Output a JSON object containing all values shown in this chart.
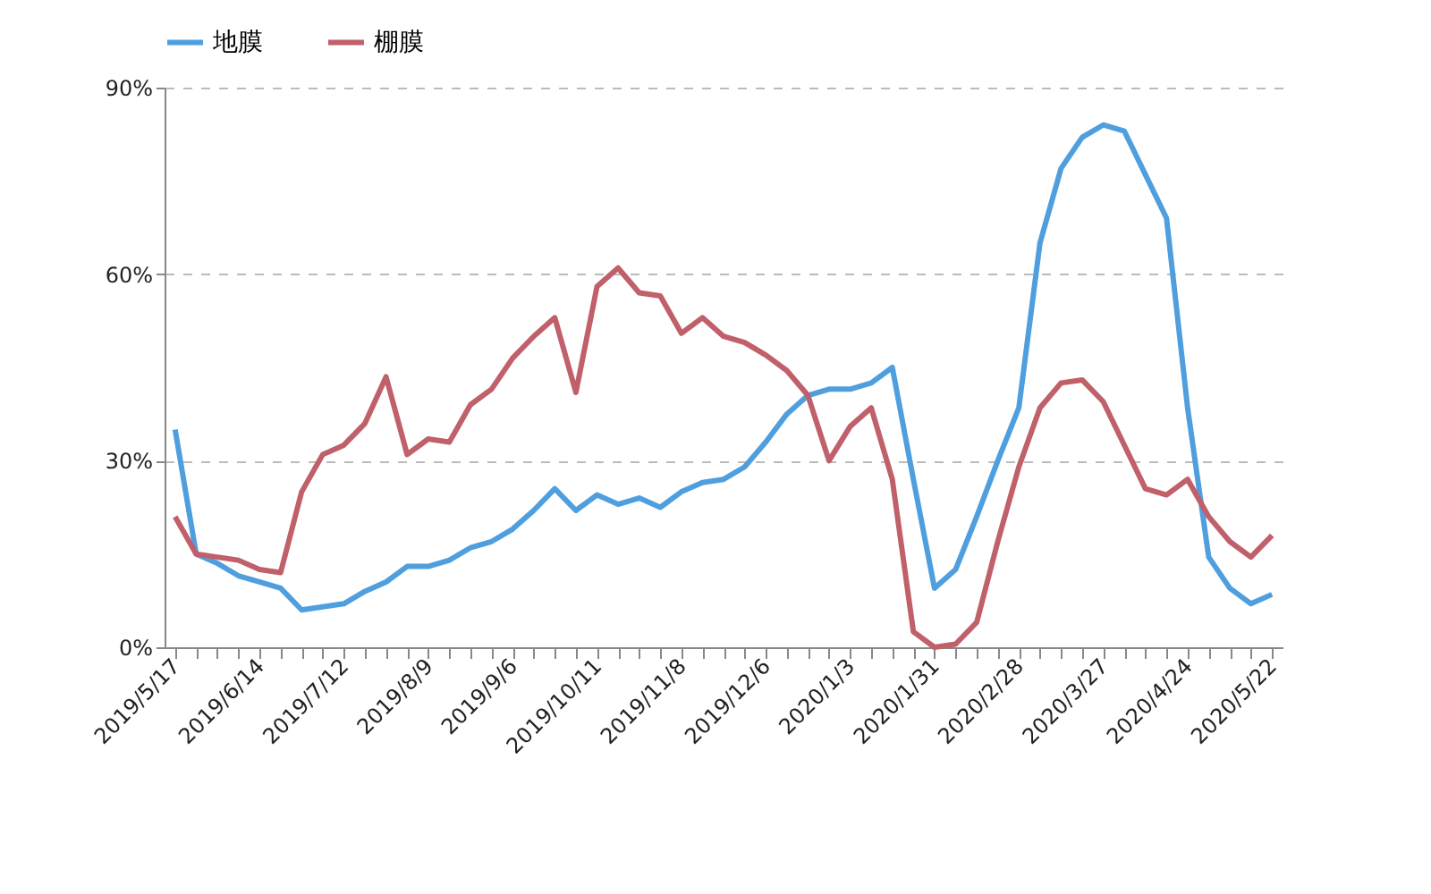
{
  "chart_data": {
    "type": "line",
    "categories": [
      "2019/5/17",
      null,
      null,
      null,
      "2019/6/14",
      null,
      null,
      null,
      "2019/7/12",
      null,
      null,
      null,
      "2019/8/9",
      null,
      null,
      null,
      "2019/9/6",
      null,
      null,
      null,
      "2019/10/11",
      null,
      null,
      null,
      "2019/11/8",
      null,
      null,
      null,
      "2019/12/6",
      null,
      null,
      null,
      "2020/1/3",
      null,
      null,
      null,
      "2020/1/31",
      null,
      null,
      null,
      "2020/2/28",
      null,
      null,
      null,
      "2020/3/27",
      null,
      null,
      null,
      "2020/4/24",
      null,
      null,
      null,
      "2020/5/22"
    ],
    "series": [
      {
        "name": "地膜",
        "color": "#4f9fdf",
        "values": [
          35,
          15,
          13.5,
          11.5,
          10.5,
          9.5,
          6,
          6.5,
          7,
          9,
          10.5,
          13,
          13,
          14,
          16,
          17,
          19,
          22,
          25.5,
          22,
          24.5,
          23,
          24,
          22.5,
          25,
          26.5,
          27,
          29,
          33,
          37.5,
          40.5,
          41.5,
          41.5,
          42.5,
          45,
          27,
          9.5,
          12.5,
          21,
          30,
          38.5,
          65,
          77,
          82,
          84,
          83,
          76,
          69,
          38.5,
          14.5,
          9.5,
          7,
          8.5
        ]
      },
      {
        "name": "棚膜",
        "color": "#c0606a",
        "values": [
          21,
          15,
          14.5,
          14,
          12.5,
          12,
          25,
          31,
          32.5,
          36,
          43.5,
          31,
          33.5,
          33,
          39,
          41.5,
          46.5,
          50,
          53,
          41,
          58,
          61,
          57,
          56.5,
          50.5,
          53,
          50,
          49,
          47,
          44.5,
          40.5,
          30,
          35.5,
          38.5,
          27,
          2.5,
          0,
          0.5,
          4,
          17,
          29,
          38.5,
          42.5,
          43,
          39.5,
          32.5,
          25.5,
          24.5,
          27,
          21,
          17,
          14.5,
          18
        ]
      }
    ],
    "ylim": [
      0,
      90
    ],
    "yticks": [
      {
        "value": 0,
        "label": "0%"
      },
      {
        "value": 30,
        "label": "30%"
      },
      {
        "value": 60,
        "label": "60%"
      },
      {
        "value": 90,
        "label": "90%"
      }
    ],
    "grid": "y",
    "legend": "top",
    "line_style": "solid"
  }
}
